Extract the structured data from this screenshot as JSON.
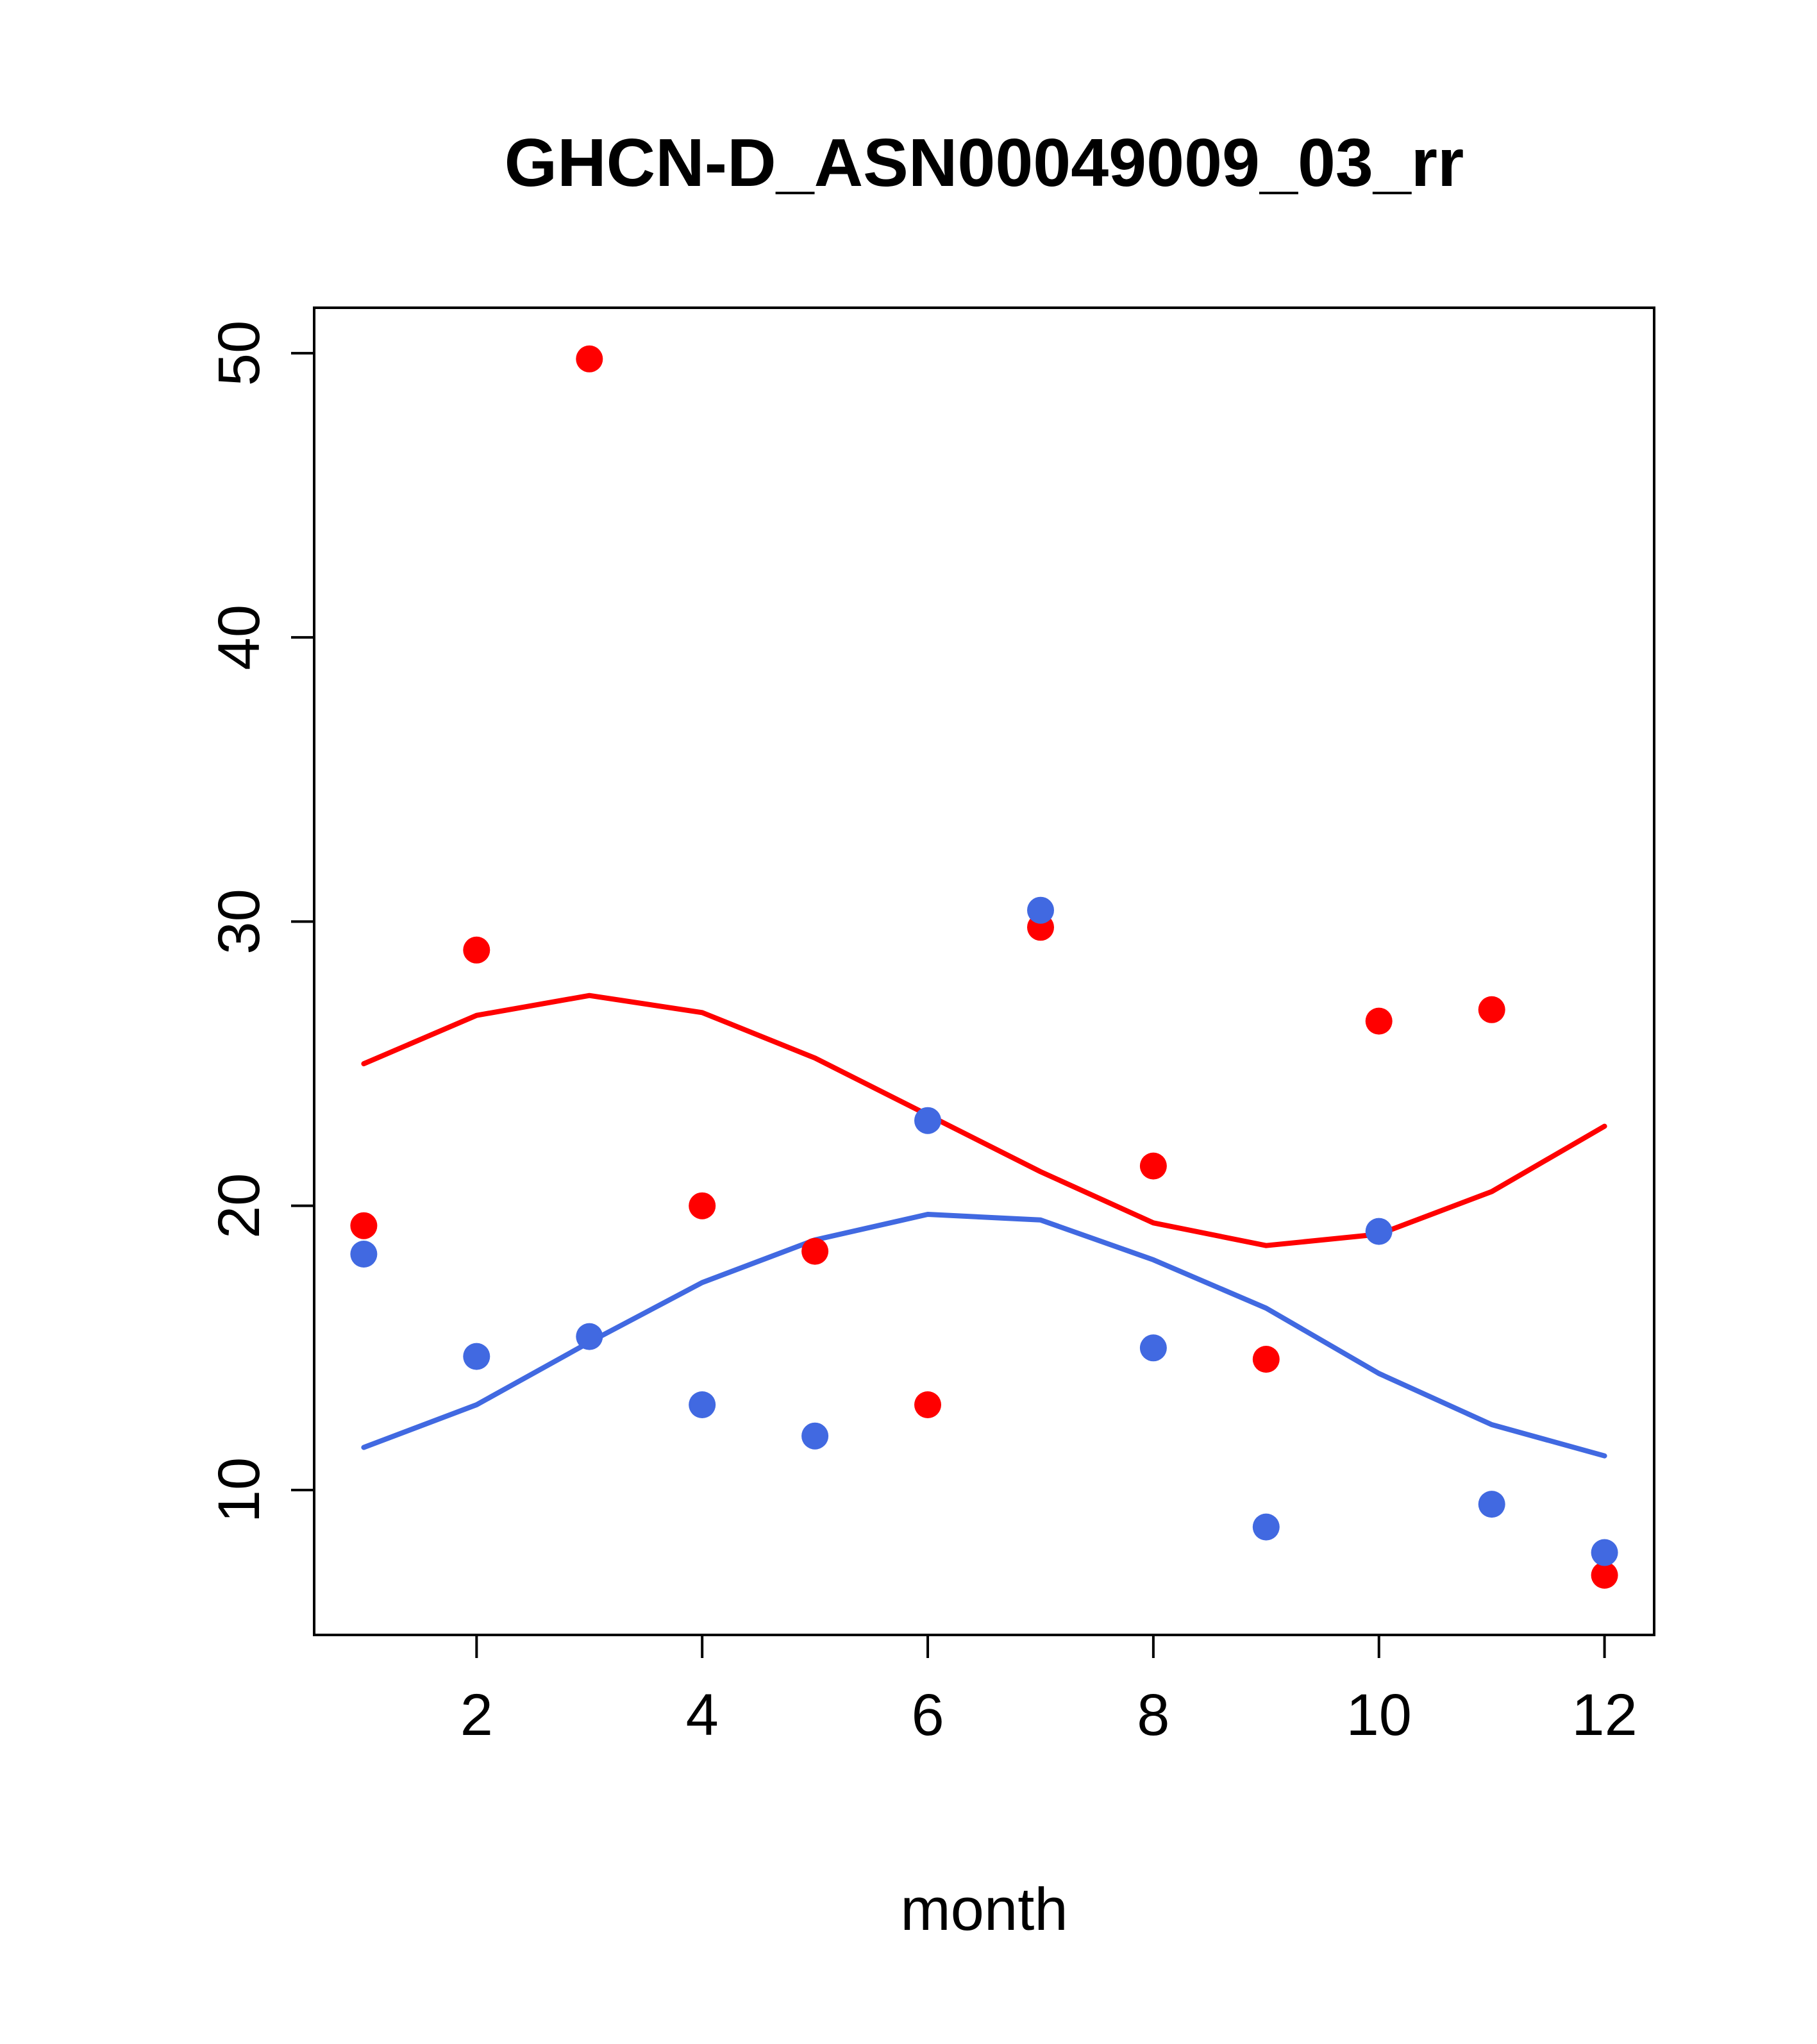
{
  "chart_data": {
    "type": "scatter",
    "title": "GHCN-D_ASN00049009_03_rr",
    "xlabel": "month",
    "ylabel": "",
    "xlim": [
      0.56,
      12.44
    ],
    "ylim": [
      4.9,
      51.6
    ],
    "x_ticks": [
      2,
      4,
      6,
      8,
      10,
      12
    ],
    "y_ticks": [
      10,
      20,
      30,
      40,
      50
    ],
    "grid": false,
    "legend": "none",
    "colors": {
      "red": "#ff0000",
      "blue": "#4169e1"
    },
    "x": [
      1,
      2,
      3,
      4,
      5,
      6,
      7,
      8,
      9,
      10,
      11,
      12
    ],
    "series": [
      {
        "name": "red-points",
        "kind": "points",
        "color": "red",
        "values": [
          19.3,
          29.0,
          49.8,
          20.0,
          18.4,
          13.0,
          29.8,
          21.4,
          14.6,
          26.5,
          26.9,
          7.0
        ]
      },
      {
        "name": "blue-points",
        "kind": "points",
        "color": "blue",
        "values": [
          18.3,
          14.7,
          15.4,
          13.0,
          11.9,
          23.0,
          30.4,
          15.0,
          8.7,
          19.1,
          9.5,
          7.8
        ]
      },
      {
        "name": "red-smooth-line",
        "kind": "line",
        "color": "red",
        "values": [
          25.0,
          26.7,
          27.4,
          26.8,
          25.2,
          23.2,
          21.2,
          19.4,
          18.6,
          19.0,
          20.5,
          22.8
        ]
      },
      {
        "name": "blue-smooth-line",
        "kind": "line",
        "color": "blue",
        "values": [
          11.5,
          13.0,
          15.2,
          17.3,
          18.8,
          19.7,
          19.5,
          18.1,
          16.4,
          14.1,
          12.3,
          11.2
        ]
      }
    ]
  }
}
